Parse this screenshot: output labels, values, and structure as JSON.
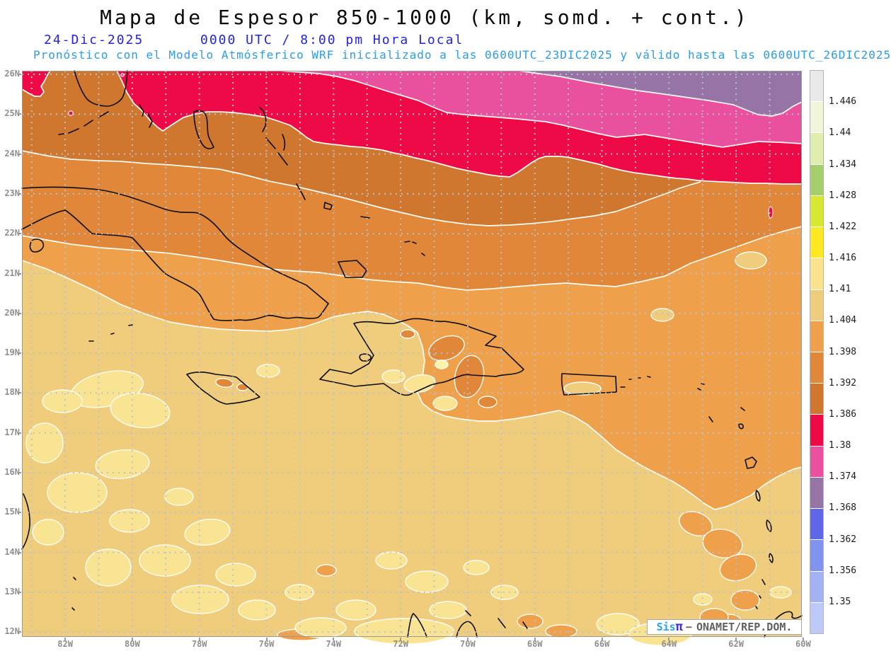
{
  "title": "Mapa de Espesor 850-1000 (km, somd. + cont.)",
  "header": {
    "date": "24-Dic-2025",
    "time_line": "0000 UTC / 8:00 pm Hora Local",
    "forecast_line": "Pronóstico con el Modelo Atmósferico WRF inicializado a las 0600UTC_23DIC2025 y válido hasta las  0600UTC_26DIC2025"
  },
  "axes": {
    "lat_labels": [
      "26N",
      "25N",
      "24N",
      "23N",
      "22N",
      "21N",
      "20N",
      "19N",
      "18N",
      "17N",
      "16N",
      "15N",
      "14N",
      "13N",
      "12N"
    ],
    "lon_labels": [
      "82W",
      "80W",
      "78W",
      "76W",
      "74W",
      "72W",
      "70W",
      "68W",
      "66W",
      "64W",
      "62W",
      "60W"
    ]
  },
  "colorbar": {
    "tick_labels": [
      "1.446",
      "1.44",
      "1.434",
      "1.428",
      "1.422",
      "1.416",
      "1.41",
      "1.404",
      "1.398",
      "1.392",
      "1.386",
      "1.38",
      "1.374",
      "1.368",
      "1.362",
      "1.356",
      "1.35"
    ],
    "cell_colors": [
      "#e9e9e9",
      "#f1f6da",
      "#dfedae",
      "#a5cf6d",
      "#d7e832",
      "#fde825",
      "#f9e38c",
      "#f0cd7c",
      "#efa04a",
      "#e0873a",
      "#d0772f",
      "#ee0a47",
      "#e9519f",
      "#9674a6",
      "#5f66e8",
      "#8093ee",
      "#a2b2f4",
      "#bec9f8"
    ]
  },
  "map_colors": {
    "tan": "#f0cd7c",
    "pale_yellow": "#f9e493",
    "bright_yellow": "#fdf4a6",
    "light_orange": "#efa04a",
    "medium_orange": "#e0873a",
    "dark_orange": "#d0772f",
    "crimson": "#ee0a47",
    "pink": "#e9519f",
    "purple": "#9674a6",
    "contour_white": "#fffdf4",
    "coastline": "#0d0d0d",
    "grid": "#b7c3d0",
    "frame": "#9a9a9a"
  },
  "watermark": {
    "sis": "Sis",
    "pi": "π",
    "sep": "−",
    "org": "ONAMET/REP.DOM."
  },
  "chart_data": {
    "type": "heatmap",
    "title": "Mapa de Espesor 850-1000 (km, somd. + cont.)",
    "variable": "Espesor (thickness) 850-1000 hPa",
    "units": "km",
    "valid_time": "24-Dic-2025 0000 UTC / 8:00 pm Hora Local",
    "model_run": "WRF inicializado 0600UTC_23DIC2025, válido hasta 0600UTC_26DIC2025",
    "lat_range": [
      "12N",
      "26N"
    ],
    "lon_range": [
      "83W",
      "60W"
    ],
    "levels": [
      1.35,
      1.356,
      1.362,
      1.368,
      1.374,
      1.38,
      1.386,
      1.392,
      1.398,
      1.404,
      1.41,
      1.416,
      1.422,
      1.428,
      1.434,
      1.44,
      1.446
    ],
    "palette": [
      "#bec9f8",
      "#a2b2f4",
      "#8093ee",
      "#5f66e8",
      "#9674a6",
      "#e9519f",
      "#ee0a47",
      "#d0772f",
      "#e0873a",
      "#efa04a",
      "#f0cd7c",
      "#f9e38c",
      "#fde825",
      "#d7e832",
      "#a5cf6d",
      "#dfedae",
      "#f1f6da",
      "#e9e9e9"
    ],
    "legend_position": "right",
    "grid": "on, dotted, 1 degree",
    "bands_north_to_south": [
      {
        "value_range": "1.368-1.374",
        "color": "#9674a6",
        "region": "NE corner, north of ~25.3N east of ~68W"
      },
      {
        "value_range": "1.374-1.380",
        "color": "#e9519f",
        "region": "band ~24.5-26N east of ~75W"
      },
      {
        "value_range": "1.380-1.386",
        "color": "#ee0a47",
        "region": "band along ~24-25.8N across full map; small spots near 83W/25N"
      },
      {
        "value_range": "1.386-1.392",
        "color": "#d0772f",
        "region": "band ~23.5-25.5N, widest west (Florida Straits), pinching out east of ~63W"
      },
      {
        "value_range": "1.392-1.398",
        "color": "#e0873a",
        "region": "band ~21.5-24N including Cuba and the Bahamas; small patches over cordillera of Hispaniola"
      },
      {
        "value_range": "1.398-1.404",
        "color": "#efa04a",
        "region": "broad band ~18-22N incl. Dominican Republic, Puerto Rico and northern Lesser Antilles"
      },
      {
        "value_range": "1.404-1.410",
        "color": "#f0cd7c",
        "region": "southern Caribbean south of ~18.5N incl. Jamaica and Haiti"
      },
      {
        "value_range": "1.410-1.416",
        "color": "#f9e493",
        "region": "scattered warm patches ~12-18N in SW Caribbean and along 12-13N"
      }
    ]
  }
}
